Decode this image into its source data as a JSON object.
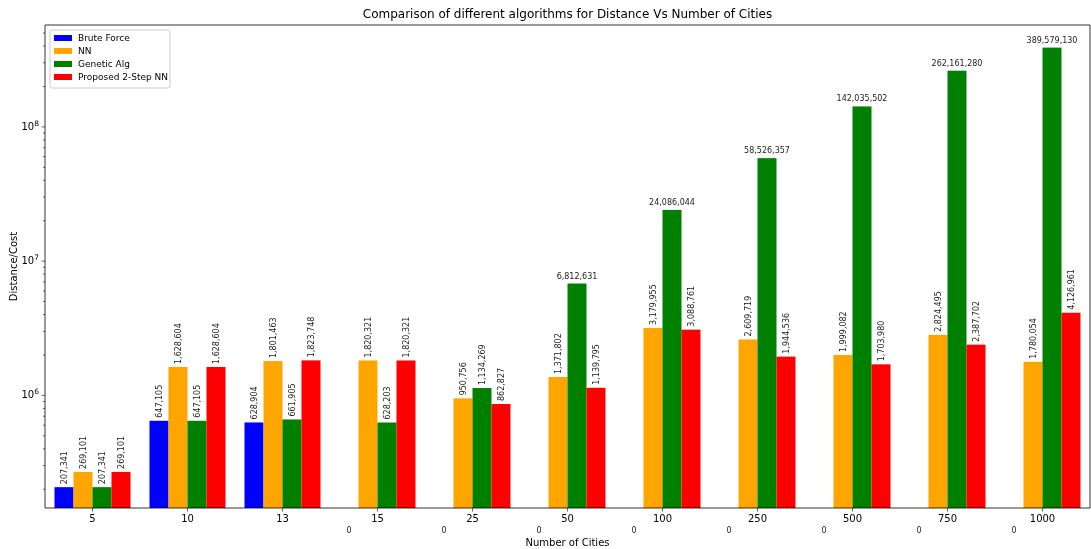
{
  "chart_data": {
    "type": "bar",
    "title": "Comparison of different algorithms for Distance Vs Number of Cities",
    "xlabel": "Number of Cities",
    "ylabel": "Distance/Cost",
    "categories": [
      "5",
      "10",
      "13",
      "15",
      "25",
      "50",
      "100",
      "250",
      "500",
      "750",
      "1000"
    ],
    "log": "y",
    "ylim": [
      145000,
      574000000
    ],
    "yticks": [
      {
        "value": 200000,
        "label": null
      },
      {
        "value": 300000,
        "label": null
      },
      {
        "value": 400000,
        "label": null
      },
      {
        "value": 500000,
        "label": null
      },
      {
        "value": 600000,
        "label": null
      },
      {
        "value": 700000,
        "label": null
      },
      {
        "value": 800000,
        "label": null
      },
      {
        "value": 900000,
        "label": null
      },
      {
        "value": 1000000,
        "label": "10$^{6}$"
      },
      {
        "value": 2000000,
        "label": null
      },
      {
        "value": 3000000,
        "label": null
      },
      {
        "value": 4000000,
        "label": null
      },
      {
        "value": 5000000,
        "label": null
      },
      {
        "value": 6000000,
        "label": null
      },
      {
        "value": 7000000,
        "label": null
      },
      {
        "value": 8000000,
        "label": null
      },
      {
        "value": 9000000,
        "label": null
      },
      {
        "value": 10000000,
        "label": "10$^{7}$"
      },
      {
        "value": 20000000,
        "label": null
      },
      {
        "value": 30000000,
        "label": null
      },
      {
        "value": 40000000,
        "label": null
      },
      {
        "value": 50000000,
        "label": null
      },
      {
        "value": 60000000,
        "label": null
      },
      {
        "value": 70000000,
        "label": null
      },
      {
        "value": 80000000,
        "label": null
      },
      {
        "value": 90000000,
        "label": null
      },
      {
        "value": 100000000,
        "label": "10$^{8}$"
      },
      {
        "value": 200000000,
        "label": null
      },
      {
        "value": 300000000,
        "label": null
      },
      {
        "value": 400000000,
        "label": null
      },
      {
        "value": 500000000,
        "label": null
      }
    ],
    "legend": "top left",
    "grid": false,
    "series": [
      {
        "name": "Brute Force",
        "color": "#0000ff",
        "values": [
          207341,
          647105,
          628904,
          null,
          null,
          null,
          null,
          null,
          null,
          null,
          null
        ],
        "value_labels": [
          "207,341",
          "647,105",
          "628,904",
          "0",
          "0",
          "0",
          "0",
          "0",
          "0",
          "0",
          "0"
        ]
      },
      {
        "name": "NN",
        "color": "#ffa500",
        "values": [
          269101,
          1628604,
          1801463,
          1820321,
          950756,
          1371802,
          3179955,
          2609719,
          1999082,
          2824495,
          1780054
        ],
        "value_labels": [
          "269,101",
          "1,628,604",
          "1,801,463",
          "1,820,321",
          "950,756",
          "1,371,802",
          "3,179,955",
          "2,609,719",
          "1,999,082",
          "2,824,495",
          "1,780,054"
        ]
      },
      {
        "name": "Genetic Alg",
        "color": "#008000",
        "values": [
          207341,
          647105,
          661905,
          628203,
          1134269,
          6812631,
          24086044,
          58526357,
          142035502,
          262161280,
          389579130
        ],
        "value_labels": [
          "207,341",
          "647,105",
          "661,905",
          "628,203",
          "1,134,269",
          "6,812,631",
          "24,086,044",
          "58,526,357",
          "142,035,502",
          "262,161,280",
          "389,579,130"
        ]
      },
      {
        "name": "Proposed 2-Step NN",
        "color": "#ff0000",
        "values": [
          269101,
          1628604,
          1823748,
          1820321,
          862827,
          1139795,
          3088761,
          1944536,
          1703980,
          2387702,
          4126961
        ],
        "value_labels": [
          "269,101",
          "1,628,604",
          "1,823,748",
          "1,820,321",
          "862,827",
          "1,139,795",
          "3,088,761",
          "1,944,536",
          "1,703,980",
          "2,387,702",
          "4,126,961"
        ]
      }
    ]
  }
}
